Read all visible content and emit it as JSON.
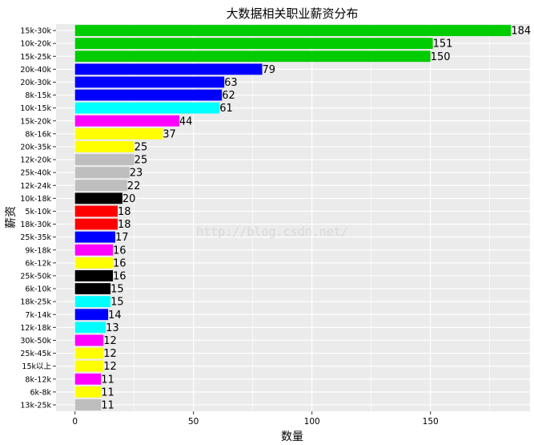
{
  "chart_data": {
    "type": "bar",
    "orientation": "horizontal",
    "title": "大数据相关职业薪资分布",
    "xlabel": "数量",
    "ylabel": "薪资",
    "xlim": [
      -8,
      192
    ],
    "x_ticks": [
      0,
      50,
      100,
      150
    ],
    "grid": true,
    "legend": "none",
    "watermark": "http://blog.csdn.net/",
    "bars": [
      {
        "category": "15k-30k",
        "value": 184,
        "color": "#00cc00"
      },
      {
        "category": "10k-20k",
        "value": 151,
        "color": "#00cc00"
      },
      {
        "category": "15k-25k",
        "value": 150,
        "color": "#00cc00"
      },
      {
        "category": "20k-40k",
        "value": 79,
        "color": "#0000ff"
      },
      {
        "category": "20k-30k",
        "value": 63,
        "color": "#0000ff"
      },
      {
        "category": "8k-15k",
        "value": 62,
        "color": "#0000ff"
      },
      {
        "category": "10k-15k",
        "value": 61,
        "color": "#00ffff"
      },
      {
        "category": "15k-20k",
        "value": 44,
        "color": "#ff00ff"
      },
      {
        "category": "8k-16k",
        "value": 37,
        "color": "#ffff00"
      },
      {
        "category": "20k-35k",
        "value": 25,
        "color": "#ffff00"
      },
      {
        "category": "12k-20k",
        "value": 25,
        "color": "#bebebe"
      },
      {
        "category": "25k-40k",
        "value": 23,
        "color": "#bebebe"
      },
      {
        "category": "12k-24k",
        "value": 22,
        "color": "#bebebe"
      },
      {
        "category": "10k-18k",
        "value": 20,
        "color": "#000000"
      },
      {
        "category": "5k-10k",
        "value": 18,
        "color": "#ff0000"
      },
      {
        "category": "18k-30k",
        "value": 18,
        "color": "#ff0000"
      },
      {
        "category": "25k-35k",
        "value": 17,
        "color": "#0000ff"
      },
      {
        "category": "9k-18k",
        "value": 16,
        "color": "#ff00ff"
      },
      {
        "category": "6k-12k",
        "value": 16,
        "color": "#ffff00"
      },
      {
        "category": "25k-50k",
        "value": 16,
        "color": "#000000"
      },
      {
        "category": "6k-10k",
        "value": 15,
        "color": "#000000"
      },
      {
        "category": "18k-25k",
        "value": 15,
        "color": "#00ffff"
      },
      {
        "category": "7k-14k",
        "value": 14,
        "color": "#0000ff"
      },
      {
        "category": "12k-18k",
        "value": 13,
        "color": "#00ffff"
      },
      {
        "category": "30k-50k",
        "value": 12,
        "color": "#ff00ff"
      },
      {
        "category": "25k-45k",
        "value": 12,
        "color": "#ffff00"
      },
      {
        "category": "15k以上",
        "value": 12,
        "color": "#ffff00"
      },
      {
        "category": "8k-12k",
        "value": 11,
        "color": "#ff00ff"
      },
      {
        "category": "6k-8k",
        "value": 11,
        "color": "#ffff00"
      },
      {
        "category": "13k-25k",
        "value": 11,
        "color": "#bebebe"
      }
    ],
    "colors": {
      "panel_background": "#ebebeb",
      "gridline": "#ffffff"
    }
  }
}
